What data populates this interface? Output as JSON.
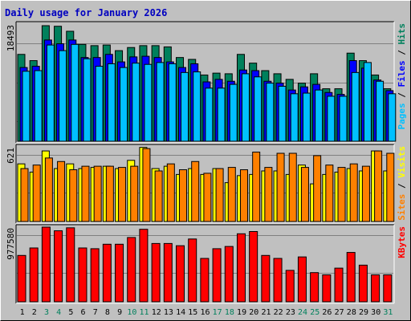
{
  "title": "Daily usage for January 2026",
  "colors": {
    "hits": "#00805c",
    "files": "#0000ff",
    "pages": "#00c0ff",
    "visits": "#ffff00",
    "sites": "#ff8000",
    "kbytes": "#ff0000",
    "weekend_label": "#00805c",
    "weekday_label": "#000000",
    "title": "#0000c0"
  },
  "chart_data": [
    {
      "type": "bar",
      "panel": "hits-files-pages",
      "y_max_label": "18493",
      "ylim": [
        0,
        18493
      ],
      "legend_right": [
        "Hits",
        "/",
        "Files",
        "/",
        "Pages"
      ],
      "categories": [
        "1",
        "2",
        "3",
        "4",
        "5",
        "6",
        "7",
        "8",
        "9",
        "10",
        "11",
        "12",
        "13",
        "14",
        "15",
        "16",
        "17",
        "18",
        "19",
        "20",
        "21",
        "22",
        "23",
        "24",
        "25",
        "26",
        "27",
        "28",
        "29",
        "30",
        "31"
      ],
      "weekend_days": [
        "3",
        "4",
        "10",
        "11",
        "17",
        "18",
        "24",
        "25",
        "31"
      ],
      "series": [
        {
          "name": "Hits",
          "values": [
            13900,
            12900,
            18493,
            18400,
            17600,
            15500,
            15300,
            15400,
            14500,
            15000,
            15300,
            15300,
            15100,
            13400,
            13100,
            10600,
            10900,
            10800,
            13900,
            12500,
            11300,
            10800,
            9900,
            9300,
            10800,
            8400,
            8400,
            14100,
            12900,
            10600,
            8400
          ]
        },
        {
          "name": "Files",
          "values": [
            11800,
            12000,
            16200,
            15600,
            16200,
            13400,
            13400,
            13900,
            12700,
            13500,
            13600,
            13400,
            12700,
            11800,
            12400,
            9500,
            9900,
            9600,
            11400,
            11300,
            9600,
            9300,
            8200,
            8700,
            9100,
            7800,
            7500,
            12900,
            11700,
            9800,
            8100
          ]
        },
        {
          "name": "Pages",
          "values": [
            11200,
            11300,
            15400,
            14500,
            15500,
            13200,
            12000,
            12400,
            11800,
            12500,
            12300,
            12600,
            12400,
            11000,
            11100,
            8500,
            8500,
            9100,
            10800,
            10300,
            9300,
            8800,
            7600,
            7700,
            8200,
            7200,
            7200,
            11000,
            12600,
            9600,
            7600
          ]
        }
      ]
    },
    {
      "type": "bar",
      "panel": "visits-sites",
      "y_max_label": "621",
      "ylim": [
        0,
        621
      ],
      "legend_right": [
        "Visits",
        "/",
        "Sites"
      ],
      "categories": [
        "1",
        "2",
        "3",
        "4",
        "5",
        "6",
        "7",
        "8",
        "9",
        "10",
        "11",
        "12",
        "13",
        "14",
        "15",
        "16",
        "17",
        "18",
        "19",
        "20",
        "21",
        "22",
        "23",
        "24",
        "25",
        "26",
        "27",
        "28",
        "29",
        "30",
        "31"
      ],
      "series": [
        {
          "name": "Visits",
          "values": [
            490,
            420,
            600,
            450,
            490,
            450,
            460,
            470,
            450,
            520,
            630,
            450,
            470,
            400,
            450,
            400,
            450,
            330,
            390,
            400,
            430,
            430,
            400,
            480,
            320,
            400,
            420,
            450,
            430,
            600,
            430
          ]
        },
        {
          "name": "Sites",
          "values": [
            450,
            480,
            540,
            510,
            440,
            470,
            470,
            470,
            460,
            470,
            620,
            430,
            490,
            440,
            510,
            410,
            450,
            460,
            440,
            590,
            460,
            580,
            580,
            460,
            560,
            480,
            460,
            490,
            470,
            600,
            580
          ]
        }
      ]
    },
    {
      "type": "bar",
      "panel": "kbytes",
      "y_max_label": "977580",
      "ylim": [
        0,
        977580
      ],
      "legend_right": [
        "KBytes"
      ],
      "categories": [
        "1",
        "2",
        "3",
        "4",
        "5",
        "6",
        "7",
        "8",
        "9",
        "10",
        "11",
        "12",
        "13",
        "14",
        "15",
        "16",
        "17",
        "18",
        "19",
        "20",
        "21",
        "22",
        "23",
        "24",
        "25",
        "26",
        "27",
        "28",
        "29",
        "30",
        "31"
      ],
      "series": [
        {
          "name": "KBytes",
          "values": [
            620000,
            720000,
            1000000,
            950000,
            990000,
            720000,
            710000,
            770000,
            770000,
            860000,
            970000,
            780000,
            780000,
            750000,
            840000,
            580000,
            710000,
            740000,
            910000,
            940000,
            620000,
            580000,
            420000,
            600000,
            390000,
            360000,
            450000,
            660000,
            490000,
            360000,
            360000
          ]
        }
      ]
    }
  ]
}
